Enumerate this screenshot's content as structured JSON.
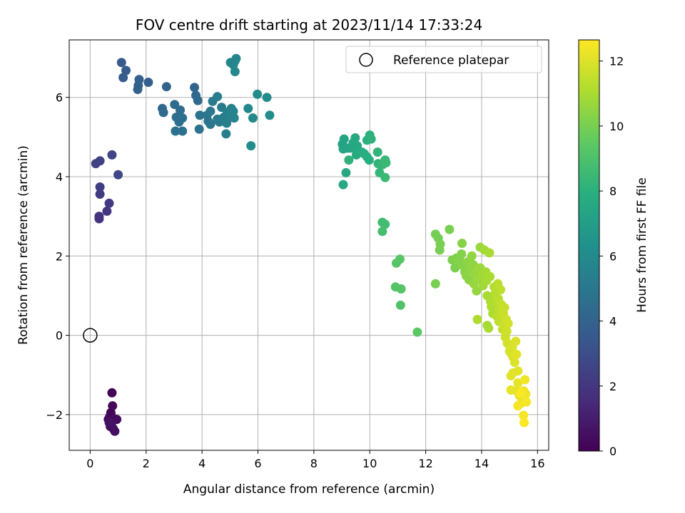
{
  "chart_data": {
    "type": "scatter",
    "title": "FOV centre drift starting at 2023/11/14 17:33:24",
    "xlabel": "Angular distance from reference (arcmin)",
    "ylabel": "Rotation from reference (arcmin)",
    "colorbar_label": "Hours from first FF file",
    "colormap": "viridis",
    "xlim": [
      -0.75,
      16.4
    ],
    "ylim": [
      -2.9,
      7.45
    ],
    "clim": [
      0,
      12.65
    ],
    "x_ticks": [
      0,
      2,
      4,
      6,
      8,
      10,
      12,
      14,
      16
    ],
    "y_ticks": [
      -2,
      0,
      2,
      4,
      6
    ],
    "colorbar_ticks": [
      0,
      2,
      4,
      6,
      8,
      10,
      12
    ],
    "grid": true,
    "legend_position": "top-right",
    "reference": {
      "label": "Reference platepar",
      "x": 0,
      "y": 0
    },
    "points": [
      {
        "x": 0.78,
        "y": -1.45,
        "h": 0.1
      },
      {
        "x": 0.74,
        "y": -1.95,
        "h": 0.15
      },
      {
        "x": 0.8,
        "y": -1.78,
        "h": 0.2
      },
      {
        "x": 0.7,
        "y": -2.05,
        "h": 0.25
      },
      {
        "x": 0.65,
        "y": -2.12,
        "h": 0.3
      },
      {
        "x": 0.85,
        "y": -2.1,
        "h": 0.35
      },
      {
        "x": 0.95,
        "y": -2.12,
        "h": 0.4
      },
      {
        "x": 0.72,
        "y": -2.3,
        "h": 0.45
      },
      {
        "x": 0.82,
        "y": -2.35,
        "h": 0.5
      },
      {
        "x": 0.88,
        "y": -2.42,
        "h": 0.55
      },
      {
        "x": 0.76,
        "y": -2.22,
        "h": 0.6
      },
      {
        "x": 0.68,
        "y": -2.2,
        "h": 0.65
      },
      {
        "x": 0.2,
        "y": 4.33,
        "h": 2.4
      },
      {
        "x": 0.35,
        "y": 4.4,
        "h": 2.5
      },
      {
        "x": 0.78,
        "y": 4.55,
        "h": 2.6
      },
      {
        "x": 1.0,
        "y": 4.05,
        "h": 2.7
      },
      {
        "x": 0.35,
        "y": 3.74,
        "h": 2.3
      },
      {
        "x": 0.35,
        "y": 3.56,
        "h": 2.2
      },
      {
        "x": 0.68,
        "y": 3.33,
        "h": 2.1
      },
      {
        "x": 0.6,
        "y": 3.13,
        "h": 2.0
      },
      {
        "x": 0.32,
        "y": 3.0,
        "h": 1.9
      },
      {
        "x": 0.32,
        "y": 2.94,
        "h": 1.85
      },
      {
        "x": 1.12,
        "y": 6.88,
        "h": 3.6
      },
      {
        "x": 1.28,
        "y": 6.68,
        "h": 3.6
      },
      {
        "x": 1.18,
        "y": 6.5,
        "h": 3.6
      },
      {
        "x": 1.75,
        "y": 6.45,
        "h": 3.8
      },
      {
        "x": 2.08,
        "y": 6.38,
        "h": 3.8
      },
      {
        "x": 1.72,
        "y": 6.3,
        "h": 3.9
      },
      {
        "x": 1.7,
        "y": 6.2,
        "h": 3.9
      },
      {
        "x": 2.73,
        "y": 6.27,
        "h": 4.0
      },
      {
        "x": 3.73,
        "y": 6.25,
        "h": 4.1
      },
      {
        "x": 3.78,
        "y": 6.05,
        "h": 4.2
      },
      {
        "x": 3.85,
        "y": 5.92,
        "h": 4.3
      },
      {
        "x": 2.58,
        "y": 5.72,
        "h": 4.3
      },
      {
        "x": 2.62,
        "y": 5.62,
        "h": 4.4
      },
      {
        "x": 3.02,
        "y": 5.82,
        "h": 4.4
      },
      {
        "x": 3.22,
        "y": 5.68,
        "h": 4.5
      },
      {
        "x": 3.08,
        "y": 5.5,
        "h": 4.5
      },
      {
        "x": 3.3,
        "y": 5.48,
        "h": 4.6
      },
      {
        "x": 3.18,
        "y": 5.38,
        "h": 4.6
      },
      {
        "x": 3.05,
        "y": 5.15,
        "h": 4.7
      },
      {
        "x": 3.3,
        "y": 5.15,
        "h": 4.7
      },
      {
        "x": 3.9,
        "y": 5.2,
        "h": 4.8
      },
      {
        "x": 3.92,
        "y": 5.55,
        "h": 4.8
      },
      {
        "x": 4.18,
        "y": 5.55,
        "h": 4.9
      },
      {
        "x": 4.22,
        "y": 5.4,
        "h": 4.9
      },
      {
        "x": 4.3,
        "y": 5.32,
        "h": 5.0
      },
      {
        "x": 4.3,
        "y": 5.65,
        "h": 5.0
      },
      {
        "x": 4.38,
        "y": 5.9,
        "h": 5.1
      },
      {
        "x": 4.55,
        "y": 5.45,
        "h": 5.1
      },
      {
        "x": 4.62,
        "y": 5.38,
        "h": 5.2
      },
      {
        "x": 4.7,
        "y": 5.75,
        "h": 5.2
      },
      {
        "x": 4.55,
        "y": 6.02,
        "h": 5.3
      },
      {
        "x": 4.78,
        "y": 5.5,
        "h": 5.3
      },
      {
        "x": 4.88,
        "y": 5.35,
        "h": 5.4
      },
      {
        "x": 4.86,
        "y": 5.08,
        "h": 5.4
      },
      {
        "x": 4.9,
        "y": 5.62,
        "h": 5.5
      },
      {
        "x": 5.05,
        "y": 5.72,
        "h": 5.5
      },
      {
        "x": 5.12,
        "y": 5.65,
        "h": 5.6
      },
      {
        "x": 5.15,
        "y": 5.48,
        "h": 5.6
      },
      {
        "x": 4.98,
        "y": 5.52,
        "h": 5.6
      },
      {
        "x": 5.02,
        "y": 6.88,
        "h": 5.7
      },
      {
        "x": 5.18,
        "y": 6.92,
        "h": 5.7
      },
      {
        "x": 5.22,
        "y": 6.98,
        "h": 5.8
      },
      {
        "x": 5.18,
        "y": 6.65,
        "h": 5.8
      },
      {
        "x": 5.12,
        "y": 6.82,
        "h": 5.8
      },
      {
        "x": 5.65,
        "y": 5.72,
        "h": 5.9
      },
      {
        "x": 5.82,
        "y": 5.48,
        "h": 5.9
      },
      {
        "x": 5.98,
        "y": 6.08,
        "h": 6.0
      },
      {
        "x": 6.32,
        "y": 6.0,
        "h": 6.0
      },
      {
        "x": 6.42,
        "y": 5.55,
        "h": 6.1
      },
      {
        "x": 5.75,
        "y": 4.78,
        "h": 6.1
      },
      {
        "x": 9.02,
        "y": 4.82,
        "h": 7.3
      },
      {
        "x": 9.08,
        "y": 4.95,
        "h": 7.3
      },
      {
        "x": 9.05,
        "y": 4.7,
        "h": 7.4
      },
      {
        "x": 9.2,
        "y": 4.72,
        "h": 7.4
      },
      {
        "x": 9.3,
        "y": 4.72,
        "h": 7.5
      },
      {
        "x": 9.4,
        "y": 4.85,
        "h": 7.5
      },
      {
        "x": 9.48,
        "y": 4.98,
        "h": 7.6
      },
      {
        "x": 9.55,
        "y": 4.78,
        "h": 7.6
      },
      {
        "x": 9.6,
        "y": 4.65,
        "h": 7.7
      },
      {
        "x": 9.52,
        "y": 4.55,
        "h": 7.7
      },
      {
        "x": 9.72,
        "y": 4.62,
        "h": 7.8
      },
      {
        "x": 9.8,
        "y": 4.58,
        "h": 7.8
      },
      {
        "x": 9.9,
        "y": 4.5,
        "h": 7.9
      },
      {
        "x": 9.98,
        "y": 4.42,
        "h": 7.9
      },
      {
        "x": 9.9,
        "y": 4.92,
        "h": 8.0
      },
      {
        "x": 10.0,
        "y": 5.05,
        "h": 8.0
      },
      {
        "x": 10.05,
        "y": 4.95,
        "h": 8.1
      },
      {
        "x": 9.25,
        "y": 4.42,
        "h": 8.1
      },
      {
        "x": 10.28,
        "y": 4.62,
        "h": 8.2
      },
      {
        "x": 10.3,
        "y": 4.33,
        "h": 8.2
      },
      {
        "x": 10.35,
        "y": 4.1,
        "h": 8.3
      },
      {
        "x": 10.45,
        "y": 4.3,
        "h": 8.4
      },
      {
        "x": 10.55,
        "y": 4.42,
        "h": 8.4
      },
      {
        "x": 10.58,
        "y": 4.35,
        "h": 8.5
      },
      {
        "x": 10.55,
        "y": 3.98,
        "h": 8.5
      },
      {
        "x": 9.15,
        "y": 4.1,
        "h": 7.6
      },
      {
        "x": 9.05,
        "y": 3.8,
        "h": 7.6
      },
      {
        "x": 10.45,
        "y": 2.85,
        "h": 8.7
      },
      {
        "x": 10.55,
        "y": 2.8,
        "h": 8.7
      },
      {
        "x": 10.45,
        "y": 2.62,
        "h": 8.8
      },
      {
        "x": 11.08,
        "y": 1.92,
        "h": 9.3
      },
      {
        "x": 10.95,
        "y": 1.82,
        "h": 9.3
      },
      {
        "x": 10.92,
        "y": 1.22,
        "h": 9.2
      },
      {
        "x": 11.12,
        "y": 1.17,
        "h": 9.2
      },
      {
        "x": 11.1,
        "y": 0.76,
        "h": 9.1
      },
      {
        "x": 11.7,
        "y": 0.08,
        "h": 9.4
      },
      {
        "x": 12.35,
        "y": 2.55,
        "h": 9.9
      },
      {
        "x": 12.45,
        "y": 2.45,
        "h": 9.9
      },
      {
        "x": 12.52,
        "y": 2.3,
        "h": 10.0
      },
      {
        "x": 12.5,
        "y": 2.15,
        "h": 10.0
      },
      {
        "x": 12.85,
        "y": 2.67,
        "h": 10.0
      },
      {
        "x": 12.35,
        "y": 1.3,
        "h": 10.0
      },
      {
        "x": 12.95,
        "y": 1.9,
        "h": 10.1
      },
      {
        "x": 13.05,
        "y": 1.7,
        "h": 10.1
      },
      {
        "x": 13.1,
        "y": 1.95,
        "h": 10.2
      },
      {
        "x": 13.22,
        "y": 1.88,
        "h": 10.2
      },
      {
        "x": 13.28,
        "y": 2.05,
        "h": 10.2
      },
      {
        "x": 13.3,
        "y": 2.32,
        "h": 10.3
      },
      {
        "x": 13.35,
        "y": 1.75,
        "h": 10.3
      },
      {
        "x": 13.4,
        "y": 1.6,
        "h": 10.3
      },
      {
        "x": 13.45,
        "y": 1.5,
        "h": 10.4
      },
      {
        "x": 13.5,
        "y": 1.85,
        "h": 10.4
      },
      {
        "x": 13.55,
        "y": 1.4,
        "h": 10.4
      },
      {
        "x": 13.6,
        "y": 1.65,
        "h": 10.5
      },
      {
        "x": 13.65,
        "y": 2.0,
        "h": 10.5
      },
      {
        "x": 13.7,
        "y": 1.78,
        "h": 10.5
      },
      {
        "x": 13.72,
        "y": 1.3,
        "h": 10.6
      },
      {
        "x": 13.78,
        "y": 1.55,
        "h": 10.6
      },
      {
        "x": 13.82,
        "y": 1.12,
        "h": 10.6
      },
      {
        "x": 13.88,
        "y": 1.42,
        "h": 10.7
      },
      {
        "x": 13.95,
        "y": 1.7,
        "h": 10.7
      },
      {
        "x": 13.95,
        "y": 2.22,
        "h": 10.7
      },
      {
        "x": 14.0,
        "y": 1.5,
        "h": 10.8
      },
      {
        "x": 14.05,
        "y": 1.25,
        "h": 10.8
      },
      {
        "x": 14.1,
        "y": 2.15,
        "h": 10.8
      },
      {
        "x": 14.15,
        "y": 1.6,
        "h": 10.9
      },
      {
        "x": 14.18,
        "y": 1.38,
        "h": 10.9
      },
      {
        "x": 14.2,
        "y": 0.25,
        "h": 10.9
      },
      {
        "x": 14.25,
        "y": 0.18,
        "h": 11.0
      },
      {
        "x": 14.28,
        "y": 2.08,
        "h": 11.0
      },
      {
        "x": 14.3,
        "y": 1.48,
        "h": 11.0
      },
      {
        "x": 14.32,
        "y": 0.85,
        "h": 11.1
      },
      {
        "x": 14.35,
        "y": 0.72,
        "h": 11.1
      },
      {
        "x": 14.4,
        "y": 0.55,
        "h": 11.1
      },
      {
        "x": 14.45,
        "y": 1.22,
        "h": 11.2
      },
      {
        "x": 14.48,
        "y": 1.05,
        "h": 11.2
      },
      {
        "x": 14.52,
        "y": 0.8,
        "h": 11.2
      },
      {
        "x": 14.55,
        "y": 0.48,
        "h": 11.3
      },
      {
        "x": 14.58,
        "y": 1.3,
        "h": 11.3
      },
      {
        "x": 14.6,
        "y": 0.92,
        "h": 11.3
      },
      {
        "x": 14.62,
        "y": 0.35,
        "h": 11.4
      },
      {
        "x": 14.65,
        "y": 0.62,
        "h": 11.4
      },
      {
        "x": 14.68,
        "y": 1.15,
        "h": 11.4
      },
      {
        "x": 14.7,
        "y": 0.78,
        "h": 11.5
      },
      {
        "x": 14.72,
        "y": 0.42,
        "h": 11.5
      },
      {
        "x": 14.75,
        "y": 0.15,
        "h": 11.5
      },
      {
        "x": 14.78,
        "y": 0.55,
        "h": 11.6
      },
      {
        "x": 14.8,
        "y": 0.25,
        "h": 11.6
      },
      {
        "x": 14.82,
        "y": 0.7,
        "h": 11.6
      },
      {
        "x": 14.85,
        "y": -0.05,
        "h": 11.7
      },
      {
        "x": 14.88,
        "y": 0.4,
        "h": 11.7
      },
      {
        "x": 14.9,
        "y": 0.1,
        "h": 11.7
      },
      {
        "x": 14.92,
        "y": -0.2,
        "h": 11.8
      },
      {
        "x": 14.95,
        "y": 0.3,
        "h": 11.8
      },
      {
        "x": 14.2,
        "y": 1.0,
        "h": 11.0
      },
      {
        "x": 13.85,
        "y": 0.4,
        "h": 11.1
      },
      {
        "x": 15.0,
        "y": -0.4,
        "h": 11.9
      },
      {
        "x": 15.05,
        "y": -0.45,
        "h": 11.9
      },
      {
        "x": 15.1,
        "y": -0.3,
        "h": 11.9
      },
      {
        "x": 15.12,
        "y": -0.55,
        "h": 12.0
      },
      {
        "x": 15.18,
        "y": -0.68,
        "h": 12.0
      },
      {
        "x": 15.22,
        "y": -0.15,
        "h": 12.0
      },
      {
        "x": 15.25,
        "y": -0.48,
        "h": 12.1
      },
      {
        "x": 15.3,
        "y": -0.9,
        "h": 12.1
      },
      {
        "x": 15.05,
        "y": -1.02,
        "h": 12.1
      },
      {
        "x": 15.12,
        "y": -0.95,
        "h": 12.1
      },
      {
        "x": 15.3,
        "y": -1.2,
        "h": 12.2
      },
      {
        "x": 15.05,
        "y": -1.38,
        "h": 12.2
      },
      {
        "x": 15.25,
        "y": -1.4,
        "h": 12.2
      },
      {
        "x": 15.35,
        "y": -1.52,
        "h": 12.3
      },
      {
        "x": 15.4,
        "y": -1.72,
        "h": 12.3
      },
      {
        "x": 15.45,
        "y": -1.6,
        "h": 12.3
      },
      {
        "x": 15.5,
        "y": -1.4,
        "h": 12.4
      },
      {
        "x": 15.55,
        "y": -1.12,
        "h": 12.4
      },
      {
        "x": 15.58,
        "y": -1.48,
        "h": 12.4
      },
      {
        "x": 15.6,
        "y": -1.68,
        "h": 12.5
      },
      {
        "x": 15.3,
        "y": -1.78,
        "h": 12.5
      },
      {
        "x": 15.5,
        "y": -2.02,
        "h": 12.5
      },
      {
        "x": 15.52,
        "y": -2.2,
        "h": 12.6
      },
      {
        "x": 15.4,
        "y": -1.45,
        "h": 12.6
      }
    ]
  }
}
